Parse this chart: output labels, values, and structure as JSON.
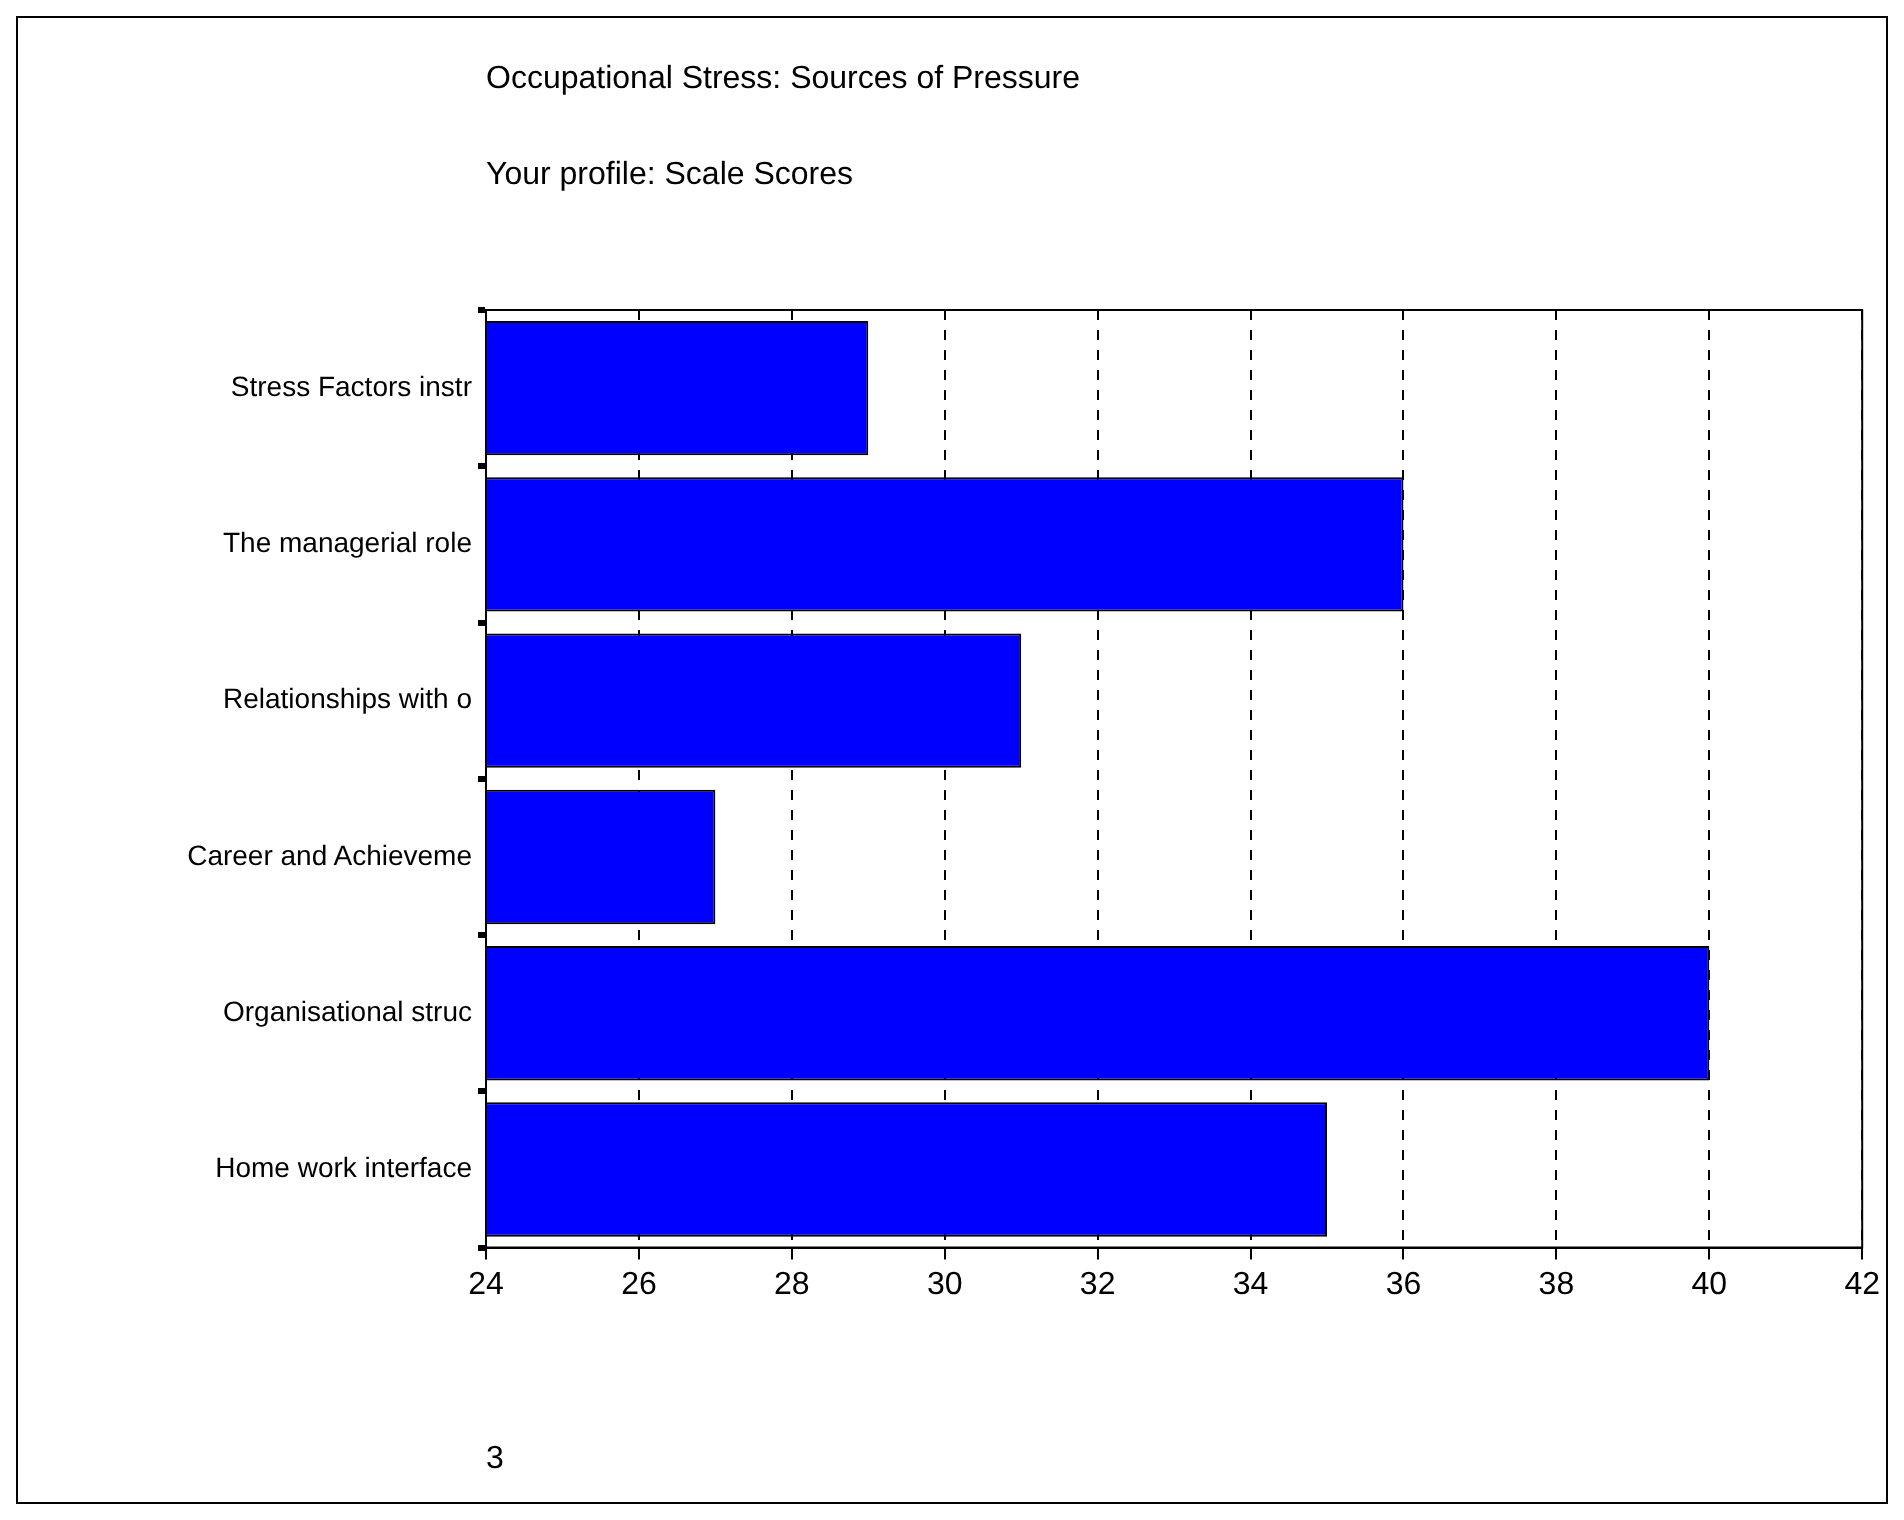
{
  "chart_data": {
    "type": "bar",
    "orientation": "horizontal",
    "title": "Occupational Stress: Sources of Pressure",
    "subtitle": "Your profile: Scale Scores",
    "categories": [
      "Stress Factors instr",
      "The managerial role",
      "Relationships with o",
      "Career and Achieveme",
      "Organisational struc",
      "Home work interface"
    ],
    "values": [
      29,
      36,
      31,
      27,
      40,
      35
    ],
    "color": "#0000ff",
    "xlim": [
      24,
      42
    ],
    "xticks": [
      24,
      26,
      28,
      30,
      32,
      34,
      36,
      38,
      40,
      42
    ],
    "grid": "x",
    "annotations": [
      "3"
    ]
  }
}
